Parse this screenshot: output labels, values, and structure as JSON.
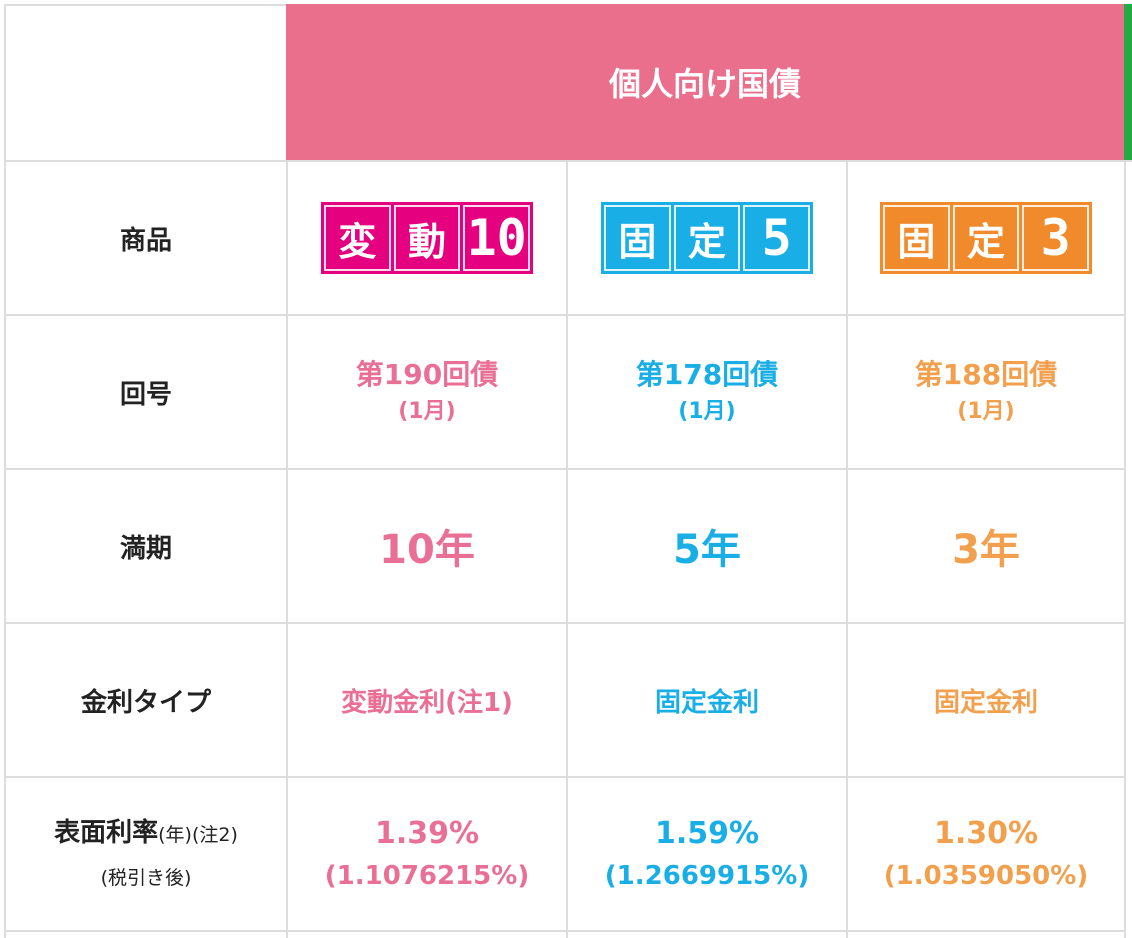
{
  "header": {
    "title": "個人向け国債"
  },
  "colors": {
    "header_bg": "#e96f8c",
    "pink": "#e96f94",
    "blue": "#1aaee6",
    "orange": "#f2a04e",
    "green_edge": "#22aa44"
  },
  "rows": {
    "product": "商品",
    "issue": "回号",
    "maturity": "満期",
    "rate_type": "金利タイプ",
    "coupon": {
      "main": "表面利率",
      "year": "(年)",
      "note": "(注2)",
      "sub": "(税引き後)"
    }
  },
  "products": [
    {
      "badge": [
        "変",
        "動",
        "10"
      ],
      "issue": "第190回債",
      "issue_month": "(1月)",
      "term": "10年",
      "rate_type": "変動金利(注1)",
      "rate": "1.39%",
      "rate_after_tax": "(1.1076215%)"
    },
    {
      "badge": [
        "固",
        "定",
        "5"
      ],
      "issue": "第178回債",
      "issue_month": "(1月)",
      "term": "5年",
      "rate_type": "固定金利",
      "rate": "1.59%",
      "rate_after_tax": "(1.2669915%)"
    },
    {
      "badge": [
        "固",
        "定",
        "3"
      ],
      "issue": "第188回債",
      "issue_month": "(1月)",
      "term": "3年",
      "rate_type": "固定金利",
      "rate": "1.30%",
      "rate_after_tax": "(1.0359050%)"
    }
  ]
}
